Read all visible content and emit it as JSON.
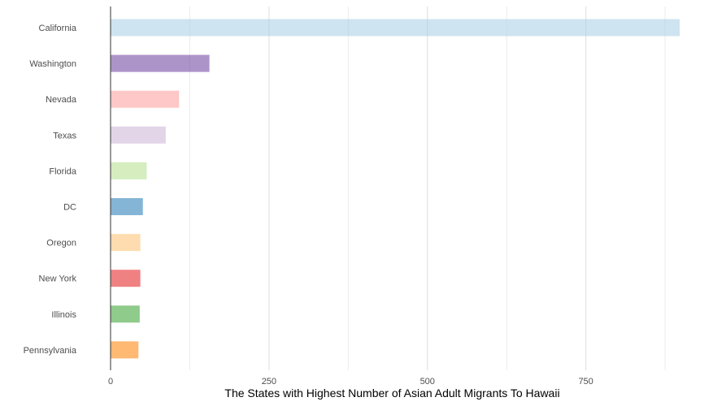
{
  "chart_data": {
    "type": "bar",
    "orientation": "horizontal",
    "categories": [
      "California",
      "Washington",
      "Nevada",
      "Texas",
      "Florida",
      "DC",
      "Oregon",
      "New York",
      "Illinois",
      "Pennsylvania"
    ],
    "values": [
      898,
      156,
      108,
      87,
      57,
      51,
      47,
      47,
      46,
      44
    ],
    "bar_colors": [
      "#a6cee3",
      "#6a3d9a",
      "#fb9a99",
      "#cab2d6",
      "#b2df8a",
      "#1f78b4",
      "#fdbf6f",
      "#e31a1c",
      "#33a02c",
      "#ff7f00"
    ],
    "bar_opacity": 0.55,
    "xlabel": "The States with Highest Number of Asian Adult Migrants To Hawaii",
    "ylabel": "",
    "x_ticks": [
      0,
      250,
      500,
      750
    ],
    "xlim": [
      0,
      900
    ],
    "grid": "vertical",
    "legend": "none"
  }
}
